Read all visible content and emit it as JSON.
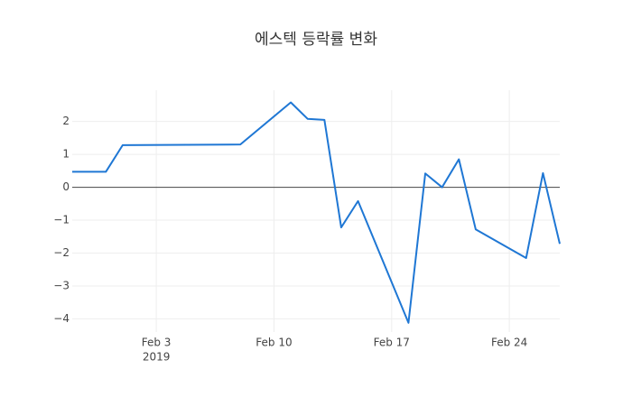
{
  "chart_data": {
    "type": "line",
    "title": "에스텍 등락률 변화",
    "x": [
      "2019-01-29",
      "2019-01-31",
      "2019-02-01",
      "2019-02-08",
      "2019-02-11",
      "2019-02-12",
      "2019-02-13",
      "2019-02-14",
      "2019-02-15",
      "2019-02-18",
      "2019-02-19",
      "2019-02-20",
      "2019-02-21",
      "2019-02-22",
      "2019-02-25",
      "2019-02-26",
      "2019-02-27"
    ],
    "series": [
      {
        "color": "#1f77d4",
        "values": [
          0.47,
          0.47,
          1.28,
          1.3,
          2.58,
          2.08,
          2.05,
          -1.22,
          -0.42,
          -4.12,
          0.42,
          0.0,
          0.85,
          -1.28,
          -2.15,
          0.43,
          -1.72
        ]
      }
    ],
    "xlim": [
      "2019-01-29",
      "2019-02-27"
    ],
    "xticks": [
      {
        "value": "2019-02-03",
        "label": "Feb 3"
      },
      {
        "value": "2019-02-10",
        "label": "Feb 10"
      },
      {
        "value": "2019-02-17",
        "label": "Feb 17"
      },
      {
        "value": "2019-02-24",
        "label": "Feb 24"
      }
    ],
    "x_year_label": "2019",
    "ylim": [
      -4.4,
      2.95
    ],
    "yticks": [
      {
        "value": -4,
        "label": "−4"
      },
      {
        "value": -3,
        "label": "−3"
      },
      {
        "value": -2,
        "label": "−2"
      },
      {
        "value": -1,
        "label": "−1"
      },
      0,
      1,
      2
    ],
    "grid": true
  }
}
